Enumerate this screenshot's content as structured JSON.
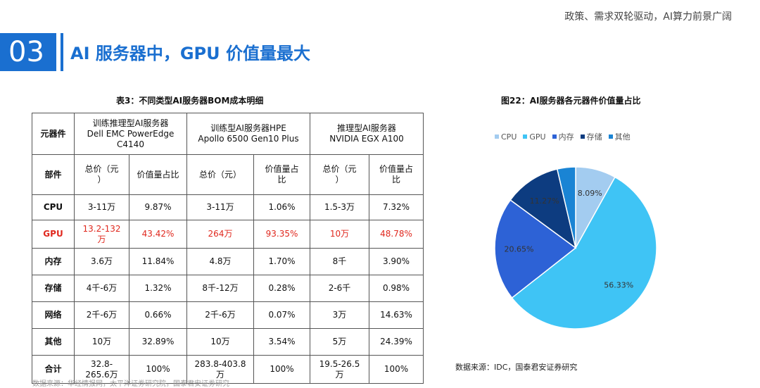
{
  "header": {
    "tagline": "政策、需求双轮驱动，AI算力前景广阔"
  },
  "section": {
    "number": "03",
    "title": "AI 服务器中，GPU 价值量最大"
  },
  "table": {
    "title": "表3：不同类型AI服务器BOM成本明细",
    "corner_label": "元器件",
    "server_headers": [
      [
        "训练推理型AI服务器",
        "Dell EMC PowerEdge",
        "C4140"
      ],
      [
        "训练型AI服务器HPE",
        "Apollo 6500 Gen10 Plus"
      ],
      [
        "推理型AI服务器",
        "NVIDIA EGX A100"
      ]
    ],
    "subheader": {
      "label": "部件",
      "price": [
        "总价（元",
        "）"
      ],
      "share": [
        "价值量占比"
      ],
      "price_2": [
        "总价（元）"
      ],
      "share_2": [
        "价值量占",
        "比"
      ],
      "price_3": [
        "总价（元",
        "）"
      ],
      "share_3": [
        "价值量占",
        "比"
      ]
    },
    "rows": [
      {
        "part": "CPU",
        "cells": [
          [
            "3-11万"
          ],
          [
            "9.87%"
          ],
          [
            "3-11万"
          ],
          [
            "1.06%"
          ],
          [
            "1.5-3万"
          ],
          [
            "7.32%"
          ]
        ]
      },
      {
        "part": "GPU",
        "highlight": true,
        "cells": [
          [
            "13.2-132",
            "万"
          ],
          [
            "43.42%"
          ],
          [
            "264万"
          ],
          [
            "93.35%"
          ],
          [
            "10万"
          ],
          [
            "48.78%"
          ]
        ]
      },
      {
        "part": "内存",
        "cells": [
          [
            "3.6万"
          ],
          [
            "11.84%"
          ],
          [
            "4.8万"
          ],
          [
            "1.70%"
          ],
          [
            "8千"
          ],
          [
            "3.90%"
          ]
        ]
      },
      {
        "part": "存储",
        "cells": [
          [
            "4千-6万"
          ],
          [
            "1.32%"
          ],
          [
            "8千-12万"
          ],
          [
            "0.28%"
          ],
          [
            "2-6千"
          ],
          [
            "0.98%"
          ]
        ]
      },
      {
        "part": "网络",
        "cells": [
          [
            "2千-6万"
          ],
          [
            "0.66%"
          ],
          [
            "2千-6万"
          ],
          [
            "0.07%"
          ],
          [
            "3万"
          ],
          [
            "14.63%"
          ]
        ]
      },
      {
        "part": "其他",
        "cells": [
          [
            "10万"
          ],
          [
            "32.89%"
          ],
          [
            "10万"
          ],
          [
            "3.54%"
          ],
          [
            "5万"
          ],
          [
            "24.39%"
          ]
        ]
      },
      {
        "part": "合计",
        "cells": [
          [
            "32.8-",
            "265.6万"
          ],
          [
            "100%"
          ],
          [
            "283.8-403.8",
            "万"
          ],
          [
            "100%"
          ],
          [
            "19.5-26.5",
            "万"
          ],
          [
            "100%"
          ]
        ]
      }
    ],
    "gpu_color": "#e0281e"
  },
  "chart_data": {
    "type": "pie",
    "title": "图22：AI服务器各元器件价值量占比",
    "legend_position": "top",
    "slices": [
      {
        "name": "CPU",
        "value": 8.09,
        "label": "8.09%",
        "color": "#a3ccf0"
      },
      {
        "name": "GPU",
        "value": 56.33,
        "label": "56.33%",
        "color": "#3fc4f5"
      },
      {
        "name": "内存",
        "value": 20.65,
        "label": "20.65%",
        "color": "#2d62d6"
      },
      {
        "name": "存储",
        "value": 11.27,
        "label": "11.27%",
        "color": "#0d3c80"
      },
      {
        "name": "其他",
        "value": 3.66,
        "label": "",
        "color": "#1a84d4"
      }
    ]
  },
  "source": {
    "text": "数据来源：IDC，国泰君安证券研究"
  },
  "footnote": {
    "text": "数据来源：华经情报网，太平洋证券研究院，国泰君安证券研究"
  }
}
